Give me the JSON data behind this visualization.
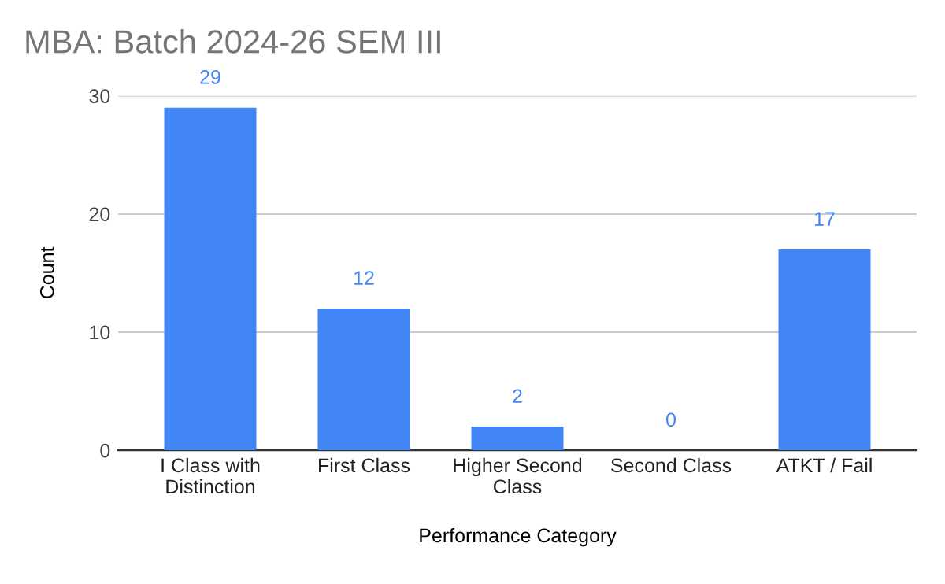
{
  "chart_data": {
    "type": "bar",
    "title": "MBA: Batch 2024-26 SEM III",
    "xlabel": "Performance Category",
    "ylabel": "Count",
    "categories": [
      "I Class with\nDistinction",
      "First Class",
      "Higher Second\nClass",
      "Second Class",
      "ATKT / Fail"
    ],
    "values": [
      29,
      12,
      2,
      0,
      17
    ],
    "color": "#4285f4",
    "ylim": [
      0,
      30
    ],
    "yticks": [
      0,
      10,
      20,
      30
    ],
    "grid": "y",
    "data_labels": true,
    "legend": false
  }
}
